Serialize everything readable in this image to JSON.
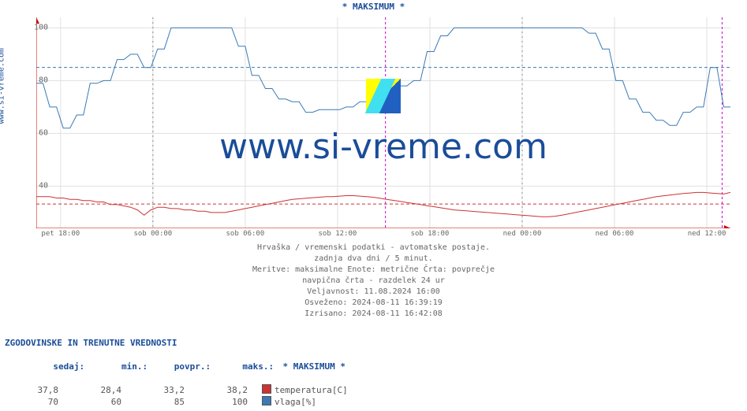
{
  "chart": {
    "title": "* MAKSIMUM *",
    "y_axis_label": "www.si-vreme.com",
    "watermark_text": "www.si-vreme.com",
    "plot_bg": "#ffffff",
    "border_color": "#cc0000",
    "grid_color": "#e0e0e0",
    "title_color": "#1a4d99",
    "ylim": [
      24,
      104
    ],
    "y_ticks": [
      40,
      60,
      80,
      100
    ],
    "x_ticks": [
      {
        "pos": 0.035,
        "label": "pet 18:00"
      },
      {
        "pos": 0.168,
        "label": "sob 00:00"
      },
      {
        "pos": 0.301,
        "label": "sob 06:00"
      },
      {
        "pos": 0.434,
        "label": "sob 12:00"
      },
      {
        "pos": 0.567,
        "label": "sob 18:00"
      },
      {
        "pos": 0.7,
        "label": "ned 00:00"
      },
      {
        "pos": 0.833,
        "label": "ned 06:00"
      },
      {
        "pos": 0.966,
        "label": "ned 12:00"
      }
    ],
    "day_separators": [
      0.168,
      0.7
    ],
    "now_line": 0.503,
    "now_line_color": "#cc00cc",
    "right_end_line": 0.988,
    "series": [
      {
        "name": "vlaga",
        "color": "#3a7ab5",
        "avg_line_color": "#3a7ab5",
        "avg_value": 85,
        "values": [
          79,
          79,
          70,
          70,
          62,
          62,
          67,
          67,
          79,
          79,
          80,
          80,
          88,
          88,
          90,
          90,
          85,
          85,
          92,
          92,
          100,
          100,
          100,
          100,
          100,
          100,
          100,
          100,
          100,
          100,
          93,
          93,
          82,
          82,
          77,
          77,
          73,
          73,
          72,
          72,
          68,
          68,
          69,
          69,
          69,
          69,
          70,
          70,
          72,
          72,
          78,
          78,
          73,
          73,
          78,
          78,
          80,
          80,
          91,
          91,
          97,
          97,
          100,
          100,
          100,
          100,
          100,
          100,
          100,
          100,
          100,
          100,
          100,
          100,
          100,
          100,
          100,
          100,
          100,
          100,
          100,
          100,
          98,
          98,
          92,
          92,
          80,
          80,
          73,
          73,
          68,
          68,
          65,
          65,
          63,
          63,
          68,
          68,
          70,
          70,
          85,
          85,
          70,
          70
        ]
      },
      {
        "name": "temperatura",
        "color": "#cc3333",
        "avg_line_color": "#cc3333",
        "avg_value": 33.2,
        "values": [
          36,
          36,
          36,
          35.5,
          35.5,
          35,
          35,
          34.5,
          34.5,
          34,
          34,
          33,
          33,
          32.5,
          32,
          31,
          29,
          31,
          32,
          32,
          31.5,
          31.5,
          31,
          31,
          30.5,
          30.5,
          30,
          30,
          30,
          30.5,
          31,
          31.5,
          32,
          32.5,
          33,
          33.5,
          34,
          34.5,
          35,
          35.2,
          35.4,
          35.6,
          35.8,
          36,
          36,
          36.2,
          36.4,
          36.4,
          36.2,
          36,
          35.8,
          35.4,
          35,
          34.6,
          34.2,
          33.8,
          33.4,
          33,
          32.6,
          32.2,
          31.8,
          31.4,
          31,
          30.8,
          30.6,
          30.4,
          30.2,
          30,
          29.8,
          29.6,
          29.4,
          29.2,
          29,
          28.8,
          28.6,
          28.4,
          28.4,
          28.6,
          29,
          29.5,
          30,
          30.5,
          31,
          31.5,
          32,
          32.5,
          33,
          33.5,
          34,
          34.5,
          35,
          35.5,
          36,
          36.3,
          36.6,
          36.9,
          37.2,
          37.4,
          37.6,
          37.6,
          37.4,
          37.2,
          37,
          37.6
        ]
      }
    ]
  },
  "footer": {
    "line1": "Hrvaška / vremenski podatki - avtomatske postaje.",
    "line2": "zadnja dva dni / 5 minut.",
    "line3": "Meritve: maksimalne  Enote: metrične  Črta: povprečje",
    "line4": "navpična črta - razdelek 24 ur",
    "line5": "Veljavnost: 11.08.2024 16:00",
    "line6": "Osveženo: 2024-08-11 16:39:19",
    "line7": "Izrisano: 2024-08-11 16:42:08"
  },
  "stats": {
    "title": "ZGODOVINSKE IN TRENUTNE VREDNOSTI",
    "headers": {
      "h1": "sedaj",
      "h2": "min.",
      "h3": "povpr.",
      "h4": "maks.",
      "h5": "* MAKSIMUM *"
    },
    "rows": [
      {
        "now": "37,8",
        "min": "28,4",
        "avg": "33,2",
        "max": "38,2",
        "label": "temperatura[C]",
        "color": "#cc3333"
      },
      {
        "now": "70",
        "min": "60",
        "avg": "85",
        "max": "100",
        "label": "vlaga[%]",
        "color": "#3a7ab5"
      }
    ],
    "colon": ":"
  }
}
